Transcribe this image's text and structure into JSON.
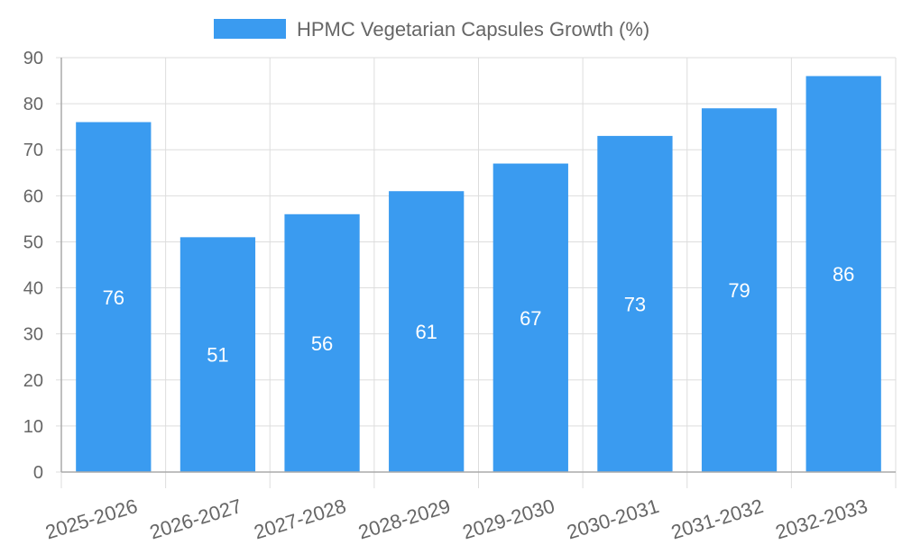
{
  "chart_data": {
    "type": "bar",
    "title": "",
    "xlabel": "",
    "ylabel": "",
    "legend": {
      "label": "HPMC Vegetarian Capsules Growth (%)",
      "position": "top-center"
    },
    "categories": [
      "2025-2026",
      "2026-2027",
      "2027-2028",
      "2028-2029",
      "2029-2030",
      "2030-2031",
      "2031-2032",
      "2032-2033"
    ],
    "series": [
      {
        "name": "HPMC Vegetarian Capsules Growth (%)",
        "values": [
          76,
          51,
          56,
          61,
          67,
          73,
          79,
          86
        ]
      }
    ],
    "data_labels": [
      "76",
      "51",
      "56",
      "61",
      "67",
      "73",
      "79",
      "86"
    ],
    "ylim": [
      0,
      90
    ],
    "yticks": [
      0,
      10,
      20,
      30,
      40,
      50,
      60,
      70,
      80,
      90
    ],
    "grid": true,
    "colors": {
      "bar": "#3a9bf0",
      "grid": "#dddddd",
      "axis": "#aaaaaa",
      "tick_text": "#666666",
      "label_text": "#ffffff"
    }
  }
}
